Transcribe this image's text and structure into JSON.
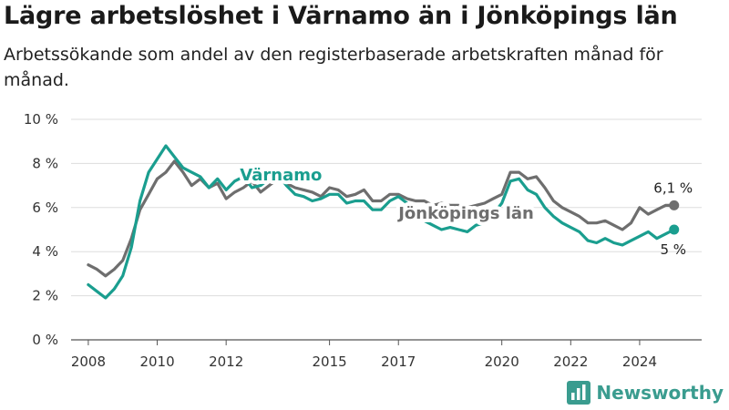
{
  "title": "Lägre arbetslöshet i Värnamo än i Jönköpings län",
  "subtitle": "Arbetssökande som andel av den registerbaserade arbetskraften månad för månad.",
  "brand": {
    "name": "Newsworthy",
    "icon": "bar-chart-logo-icon",
    "color": "#3a9c8f"
  },
  "chart_data": {
    "type": "line",
    "ylim": [
      0,
      10
    ],
    "yticks": [
      "0 %",
      "2 %",
      "4 %",
      "6 %",
      "8 %",
      "10 %"
    ],
    "xticks": [
      "2008",
      "2010",
      "2012",
      "2015",
      "2017",
      "2020",
      "2022",
      "2024"
    ],
    "grid": true,
    "series": [
      {
        "name": "Jönköpings län",
        "color": "#6e6e6e",
        "end_label": "6,1 %",
        "points": [
          [
            "2008-01",
            3.4
          ],
          [
            "2008-04",
            3.2
          ],
          [
            "2008-07",
            2.9
          ],
          [
            "2008-10",
            3.2
          ],
          [
            "2009-01",
            3.6
          ],
          [
            "2009-04",
            4.6
          ],
          [
            "2009-07",
            5.9
          ],
          [
            "2009-10",
            6.6
          ],
          [
            "2010-01",
            7.3
          ],
          [
            "2010-04",
            7.6
          ],
          [
            "2010-07",
            8.1
          ],
          [
            "2010-10",
            7.6
          ],
          [
            "2011-01",
            7.0
          ],
          [
            "2011-04",
            7.3
          ],
          [
            "2011-07",
            6.9
          ],
          [
            "2011-10",
            7.1
          ],
          [
            "2012-01",
            6.4
          ],
          [
            "2012-04",
            6.7
          ],
          [
            "2012-07",
            6.9
          ],
          [
            "2012-10",
            7.2
          ],
          [
            "2013-01",
            6.7
          ],
          [
            "2013-04",
            7.0
          ],
          [
            "2013-07",
            7.3
          ],
          [
            "2013-10",
            7.1
          ],
          [
            "2014-01",
            6.9
          ],
          [
            "2014-04",
            6.8
          ],
          [
            "2014-07",
            6.7
          ],
          [
            "2014-10",
            6.5
          ],
          [
            "2015-01",
            6.9
          ],
          [
            "2015-04",
            6.8
          ],
          [
            "2015-07",
            6.5
          ],
          [
            "2015-10",
            6.6
          ],
          [
            "2016-01",
            6.8
          ],
          [
            "2016-04",
            6.3
          ],
          [
            "2016-07",
            6.3
          ],
          [
            "2016-10",
            6.6
          ],
          [
            "2017-01",
            6.6
          ],
          [
            "2017-04",
            6.4
          ],
          [
            "2017-07",
            6.3
          ],
          [
            "2017-10",
            6.3
          ],
          [
            "2018-01",
            6.1
          ],
          [
            "2018-04",
            6.2
          ],
          [
            "2018-07",
            6.1
          ],
          [
            "2018-10",
            6.1
          ],
          [
            "2019-01",
            6.0
          ],
          [
            "2019-04",
            6.1
          ],
          [
            "2019-07",
            6.2
          ],
          [
            "2019-10",
            6.4
          ],
          [
            "2020-01",
            6.6
          ],
          [
            "2020-04",
            7.6
          ],
          [
            "2020-07",
            7.6
          ],
          [
            "2020-10",
            7.3
          ],
          [
            "2021-01",
            7.4
          ],
          [
            "2021-04",
            6.9
          ],
          [
            "2021-07",
            6.3
          ],
          [
            "2021-10",
            6.0
          ],
          [
            "2022-01",
            5.8
          ],
          [
            "2022-04",
            5.6
          ],
          [
            "2022-07",
            5.3
          ],
          [
            "2022-10",
            5.3
          ],
          [
            "2023-01",
            5.4
          ],
          [
            "2023-04",
            5.2
          ],
          [
            "2023-07",
            5.0
          ],
          [
            "2023-10",
            5.3
          ],
          [
            "2024-01",
            6.0
          ],
          [
            "2024-04",
            5.7
          ],
          [
            "2024-07",
            5.9
          ],
          [
            "2024-10",
            6.1
          ],
          [
            "2025-01",
            6.1
          ]
        ]
      },
      {
        "name": "Värnamo",
        "color": "#1a9e8f",
        "end_label": "5 %",
        "points": [
          [
            "2008-01",
            2.5
          ],
          [
            "2008-04",
            2.2
          ],
          [
            "2008-07",
            1.9
          ],
          [
            "2008-10",
            2.3
          ],
          [
            "2009-01",
            2.9
          ],
          [
            "2009-04",
            4.2
          ],
          [
            "2009-07",
            6.3
          ],
          [
            "2009-10",
            7.6
          ],
          [
            "2010-01",
            8.2
          ],
          [
            "2010-04",
            8.8
          ],
          [
            "2010-07",
            8.3
          ],
          [
            "2010-10",
            7.8
          ],
          [
            "2011-01",
            7.6
          ],
          [
            "2011-04",
            7.4
          ],
          [
            "2011-07",
            6.9
          ],
          [
            "2011-10",
            7.3
          ],
          [
            "2012-01",
            6.8
          ],
          [
            "2012-04",
            7.2
          ],
          [
            "2012-07",
            7.4
          ],
          [
            "2012-10",
            6.9
          ],
          [
            "2013-01",
            7.0
          ],
          [
            "2013-04",
            7.3
          ],
          [
            "2013-07",
            7.5
          ],
          [
            "2013-10",
            7.0
          ],
          [
            "2014-01",
            6.6
          ],
          [
            "2014-04",
            6.5
          ],
          [
            "2014-07",
            6.3
          ],
          [
            "2014-10",
            6.4
          ],
          [
            "2015-01",
            6.6
          ],
          [
            "2015-04",
            6.6
          ],
          [
            "2015-07",
            6.2
          ],
          [
            "2015-10",
            6.3
          ],
          [
            "2016-01",
            6.3
          ],
          [
            "2016-04",
            5.9
          ],
          [
            "2016-07",
            5.9
          ],
          [
            "2016-10",
            6.3
          ],
          [
            "2017-01",
            6.5
          ],
          [
            "2017-04",
            6.2
          ],
          [
            "2017-07",
            5.8
          ],
          [
            "2017-10",
            5.4
          ],
          [
            "2018-01",
            5.2
          ],
          [
            "2018-04",
            5.0
          ],
          [
            "2018-07",
            5.1
          ],
          [
            "2018-10",
            5.0
          ],
          [
            "2019-01",
            4.9
          ],
          [
            "2019-04",
            5.2
          ],
          [
            "2019-07",
            5.3
          ],
          [
            "2019-10",
            5.7
          ],
          [
            "2020-01",
            6.2
          ],
          [
            "2020-04",
            7.2
          ],
          [
            "2020-07",
            7.3
          ],
          [
            "2020-10",
            6.8
          ],
          [
            "2021-01",
            6.6
          ],
          [
            "2021-04",
            6.0
          ],
          [
            "2021-07",
            5.6
          ],
          [
            "2021-10",
            5.3
          ],
          [
            "2022-01",
            5.1
          ],
          [
            "2022-04",
            4.9
          ],
          [
            "2022-07",
            4.5
          ],
          [
            "2022-10",
            4.4
          ],
          [
            "2023-01",
            4.6
          ],
          [
            "2023-04",
            4.4
          ],
          [
            "2023-07",
            4.3
          ],
          [
            "2023-10",
            4.5
          ],
          [
            "2024-01",
            4.7
          ],
          [
            "2024-04",
            4.9
          ],
          [
            "2024-07",
            4.6
          ],
          [
            "2024-10",
            4.8
          ],
          [
            "2025-01",
            5.0
          ]
        ]
      }
    ]
  }
}
